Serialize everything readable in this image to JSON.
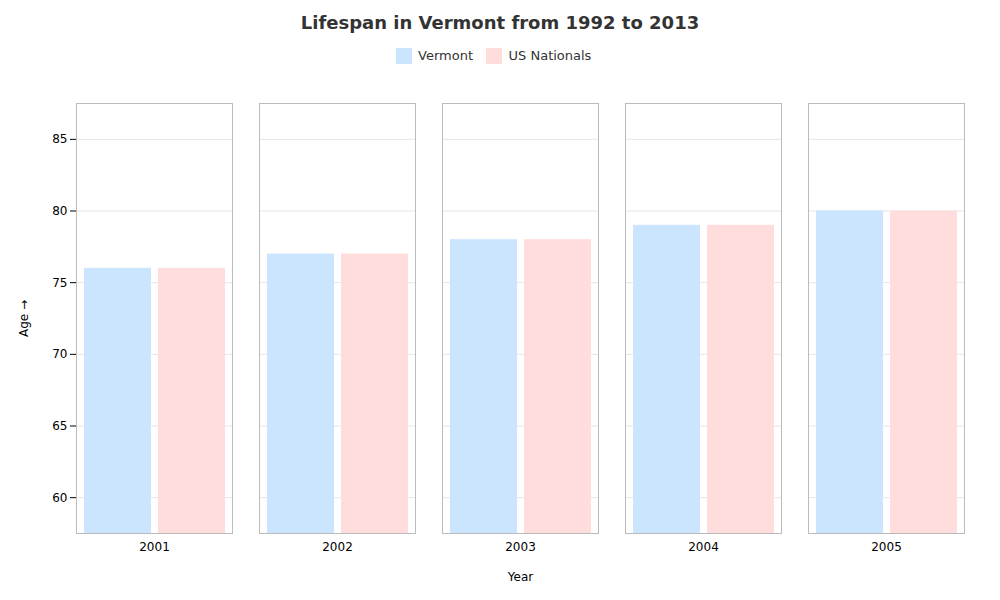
{
  "chart_data": {
    "type": "bar",
    "title": "Lifespan in Vermont from 1992 to 2013",
    "xlabel": "Year",
    "ylabel": "Age",
    "categories": [
      "2001",
      "2002",
      "2003",
      "2004",
      "2005"
    ],
    "series": [
      {
        "name": "Vermont",
        "color": "#cce5ff",
        "values": [
          76,
          77,
          78,
          79,
          80
        ]
      },
      {
        "name": "US Nationals",
        "color": "#ffdddd",
        "values": [
          76,
          77,
          78,
          79,
          80
        ]
      }
    ],
    "ylim": [
      57.5,
      87.5
    ],
    "yticks": [
      60,
      65,
      70,
      75,
      80,
      85
    ],
    "grid": true,
    "legend": "top"
  }
}
